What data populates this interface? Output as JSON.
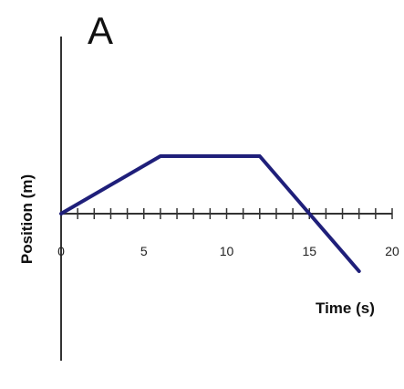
{
  "panel_label": "A",
  "colors": {
    "line": "#1f1f7a",
    "axis": "#333333"
  },
  "chart_data": {
    "type": "line",
    "xlabel": "Time (s)",
    "ylabel": "Position (m)",
    "xlim": [
      0,
      20
    ],
    "x_ticks": [
      0,
      5,
      10,
      15,
      20
    ],
    "x_tick_labels": [
      "0",
      "5",
      "10",
      "15",
      "20"
    ],
    "grid": false,
    "series": [
      {
        "x": [
          0,
          6,
          12,
          15,
          18
        ],
        "y": [
          0,
          5,
          5,
          0,
          -5
        ]
      }
    ]
  }
}
